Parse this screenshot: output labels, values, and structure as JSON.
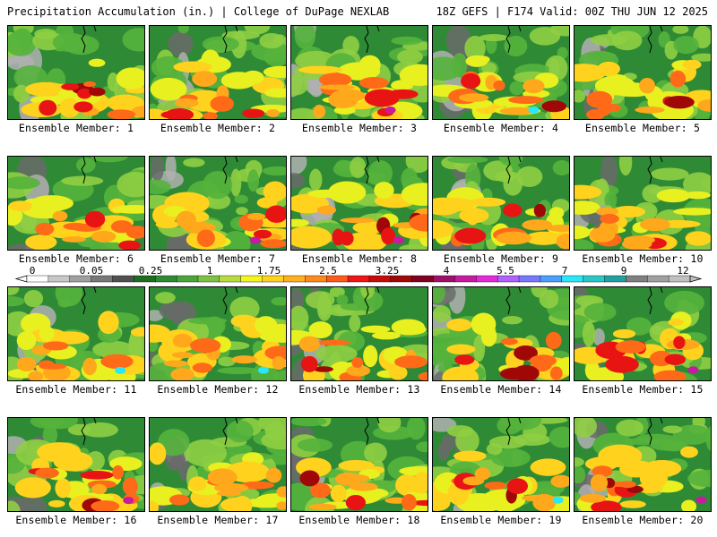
{
  "header": {
    "title_left": "Precipitation Accumulation (in.) | College of DuPage NEXLAB",
    "title_right": "18Z GEFS | F174 Valid: 00Z THU JUN 12 2025"
  },
  "members": [
    "Ensemble Member: 1",
    "Ensemble Member: 2",
    "Ensemble Member: 3",
    "Ensemble Member: 4",
    "Ensemble Member: 5",
    "Ensemble Member: 6",
    "Ensemble Member: 7",
    "Ensemble Member: 8",
    "Ensemble Member: 9",
    "Ensemble Member: 10",
    "Ensemble Member: 11",
    "Ensemble Member: 12",
    "Ensemble Member: 13",
    "Ensemble Member: 14",
    "Ensemble Member: 15",
    "Ensemble Member: 16",
    "Ensemble Member: 17",
    "Ensemble Member: 18",
    "Ensemble Member: 19",
    "Ensemble Member: 20"
  ],
  "colorbar": {
    "tick_labels": [
      "0",
      "0.05",
      "0.25",
      "1",
      "1.75",
      "2.5",
      "3.25",
      "4",
      "5.5",
      "7",
      "9",
      "12"
    ],
    "colors": [
      "#ffffff",
      "#c8c8c8",
      "#a0a0a0",
      "#787878",
      "#505050",
      "#1f6d1f",
      "#2f8a35",
      "#4aa53a",
      "#7dc243",
      "#b7dd3d",
      "#f6f41f",
      "#ffd21e",
      "#ffb01c",
      "#ff8a1a",
      "#ff5a17",
      "#f01414",
      "#c80a0a",
      "#a00808",
      "#800020",
      "#a0106a",
      "#c81aa0",
      "#e628dc",
      "#b060ff",
      "#7878ff",
      "#4aa0ff",
      "#28e8f8",
      "#28c8c8",
      "#20a0a0",
      "#808080",
      "#a0a0a0",
      "#c0c0c0"
    ]
  },
  "map": {
    "background_color": "#2f8a35",
    "precip_palette": [
      "#b0b0b0",
      "#6a6a6a",
      "#1f6d1f",
      "#2f8a35",
      "#55b23c",
      "#8fce42",
      "#e8f020",
      "#ffd21e",
      "#ffa81c",
      "#ff6a18",
      "#e81414",
      "#a00808",
      "#c81aa0",
      "#e628dc",
      "#28e8f8"
    ]
  }
}
